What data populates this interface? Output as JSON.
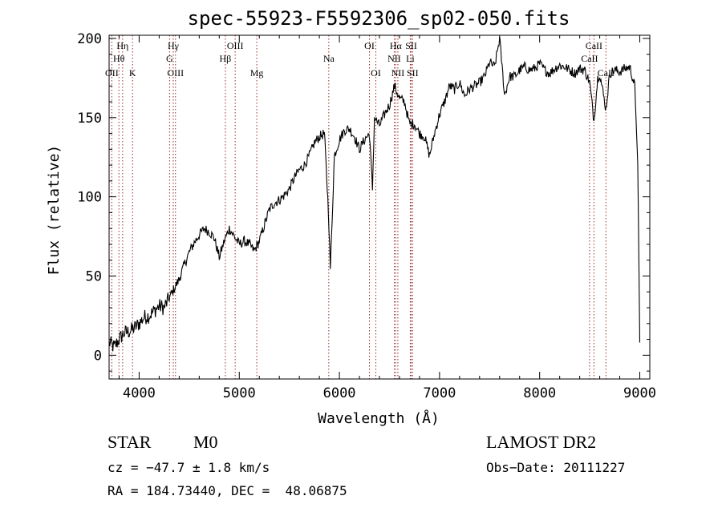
{
  "chart_data": {
    "type": "line",
    "title": "spec-55923-F5592306_sp02-050.fits",
    "xlabel": "Wavelength (Å)",
    "ylabel": "Flux (relative)",
    "xlim": [
      3700,
      9100
    ],
    "ylim": [
      -15,
      202
    ],
    "xticks": [
      4000,
      5000,
      6000,
      7000,
      8000,
      9000
    ],
    "yticks": [
      0,
      50,
      100,
      150,
      200
    ],
    "grid": false,
    "series": [
      {
        "color": "#000000",
        "x": [
          3700,
          3750,
          3800,
          3850,
          3900,
          3950,
          4000,
          4050,
          4100,
          4150,
          4200,
          4250,
          4300,
          4350,
          4400,
          4450,
          4500,
          4550,
          4600,
          4650,
          4700,
          4750,
          4800,
          4850,
          4900,
          4950,
          5000,
          5050,
          5100,
          5150,
          5200,
          5250,
          5300,
          5350,
          5400,
          5450,
          5500,
          5550,
          5600,
          5650,
          5700,
          5750,
          5800,
          5850,
          5890,
          5910,
          5950,
          6000,
          6050,
          6100,
          6150,
          6200,
          6250,
          6300,
          6330,
          6350,
          6400,
          6450,
          6500,
          6550,
          6600,
          6650,
          6700,
          6750,
          6800,
          6850,
          6900,
          6950,
          7000,
          7050,
          7100,
          7150,
          7200,
          7250,
          7300,
          7350,
          7400,
          7450,
          7500,
          7550,
          7600,
          7650,
          7700,
          7750,
          7800,
          7850,
          7900,
          7950,
          8000,
          8050,
          8100,
          8150,
          8200,
          8250,
          8300,
          8350,
          8400,
          8450,
          8500,
          8542,
          8580,
          8600,
          8662,
          8700,
          8750,
          8800,
          8850,
          8900,
          8950,
          8980,
          9000
        ],
        "y": [
          8,
          5,
          10,
          14,
          15,
          17,
          20,
          24,
          25,
          28,
          31,
          30,
          36,
          42,
          48,
          57,
          65,
          71,
          76,
          80,
          78,
          74,
          62,
          72,
          80,
          75,
          70,
          72,
          70,
          66,
          72,
          82,
          92,
          96,
          98,
          101,
          105,
          112,
          117,
          120,
          126,
          134,
          138,
          140,
          92,
          55,
          126,
          136,
          142,
          143,
          138,
          130,
          136,
          140,
          105,
          150,
          145,
          152,
          158,
          170,
          162,
          160,
          146,
          146,
          140,
          138,
          126,
          140,
          152,
          160,
          170,
          168,
          172,
          164,
          168,
          170,
          172,
          176,
          185,
          182,
          200,
          164,
          176,
          176,
          180,
          182,
          180,
          181,
          184,
          180,
          178,
          181,
          183,
          182,
          180,
          178,
          181,
          180,
          172,
          148,
          175,
          178,
          155,
          178,
          180,
          179,
          181,
          182,
          170,
          120,
          8
        ]
      }
    ],
    "annotations": [
      {
        "label": "Hη",
        "x": 3835,
        "row": 1
      },
      {
        "label": "Hθ",
        "x": 3798,
        "row": 2
      },
      {
        "label": "OII",
        "x": 3727,
        "row": 3
      },
      {
        "label": "K",
        "x": 3934,
        "row": 3
      },
      {
        "label": "Hγ",
        "x": 4341,
        "row": 1
      },
      {
        "label": "G",
        "x": 4304,
        "row": 2
      },
      {
        "label": "OIII",
        "x": 4363,
        "row": 3
      },
      {
        "label": "OIII",
        "x": 4959,
        "row": 1
      },
      {
        "label": "Hβ",
        "x": 4861,
        "row": 2
      },
      {
        "label": "Mg",
        "x": 5175,
        "row": 3
      },
      {
        "label": "Na",
        "x": 5894,
        "row": 2
      },
      {
        "label": "OI",
        "x": 6300,
        "row": 1
      },
      {
        "label": "OI",
        "x": 6364,
        "row": 3
      },
      {
        "label": "Hα",
        "x": 6563,
        "row": 1
      },
      {
        "label": "SII",
        "x": 6717,
        "row": 1
      },
      {
        "label": "NII",
        "x": 6548,
        "row": 2
      },
      {
        "label": "Li",
        "x": 6708,
        "row": 2
      },
      {
        "label": "NII",
        "x": 6584,
        "row": 3
      },
      {
        "label": "SII",
        "x": 6731,
        "row": 3
      },
      {
        "label": "CaII",
        "x": 8542,
        "row": 1
      },
      {
        "label": "CaII",
        "x": 8498,
        "row": 2
      },
      {
        "label": "CaII",
        "x": 8662,
        "row": 3
      }
    ]
  },
  "info": {
    "object_class": "STAR",
    "subclass": "M0",
    "cz": "cz = −47.7 ± 1.8 km/s",
    "coords": "RA = 184.73440, DEC =  48.06875",
    "survey": "LAMOST DR2",
    "obs_date": "Obs−Date: 20111227"
  }
}
